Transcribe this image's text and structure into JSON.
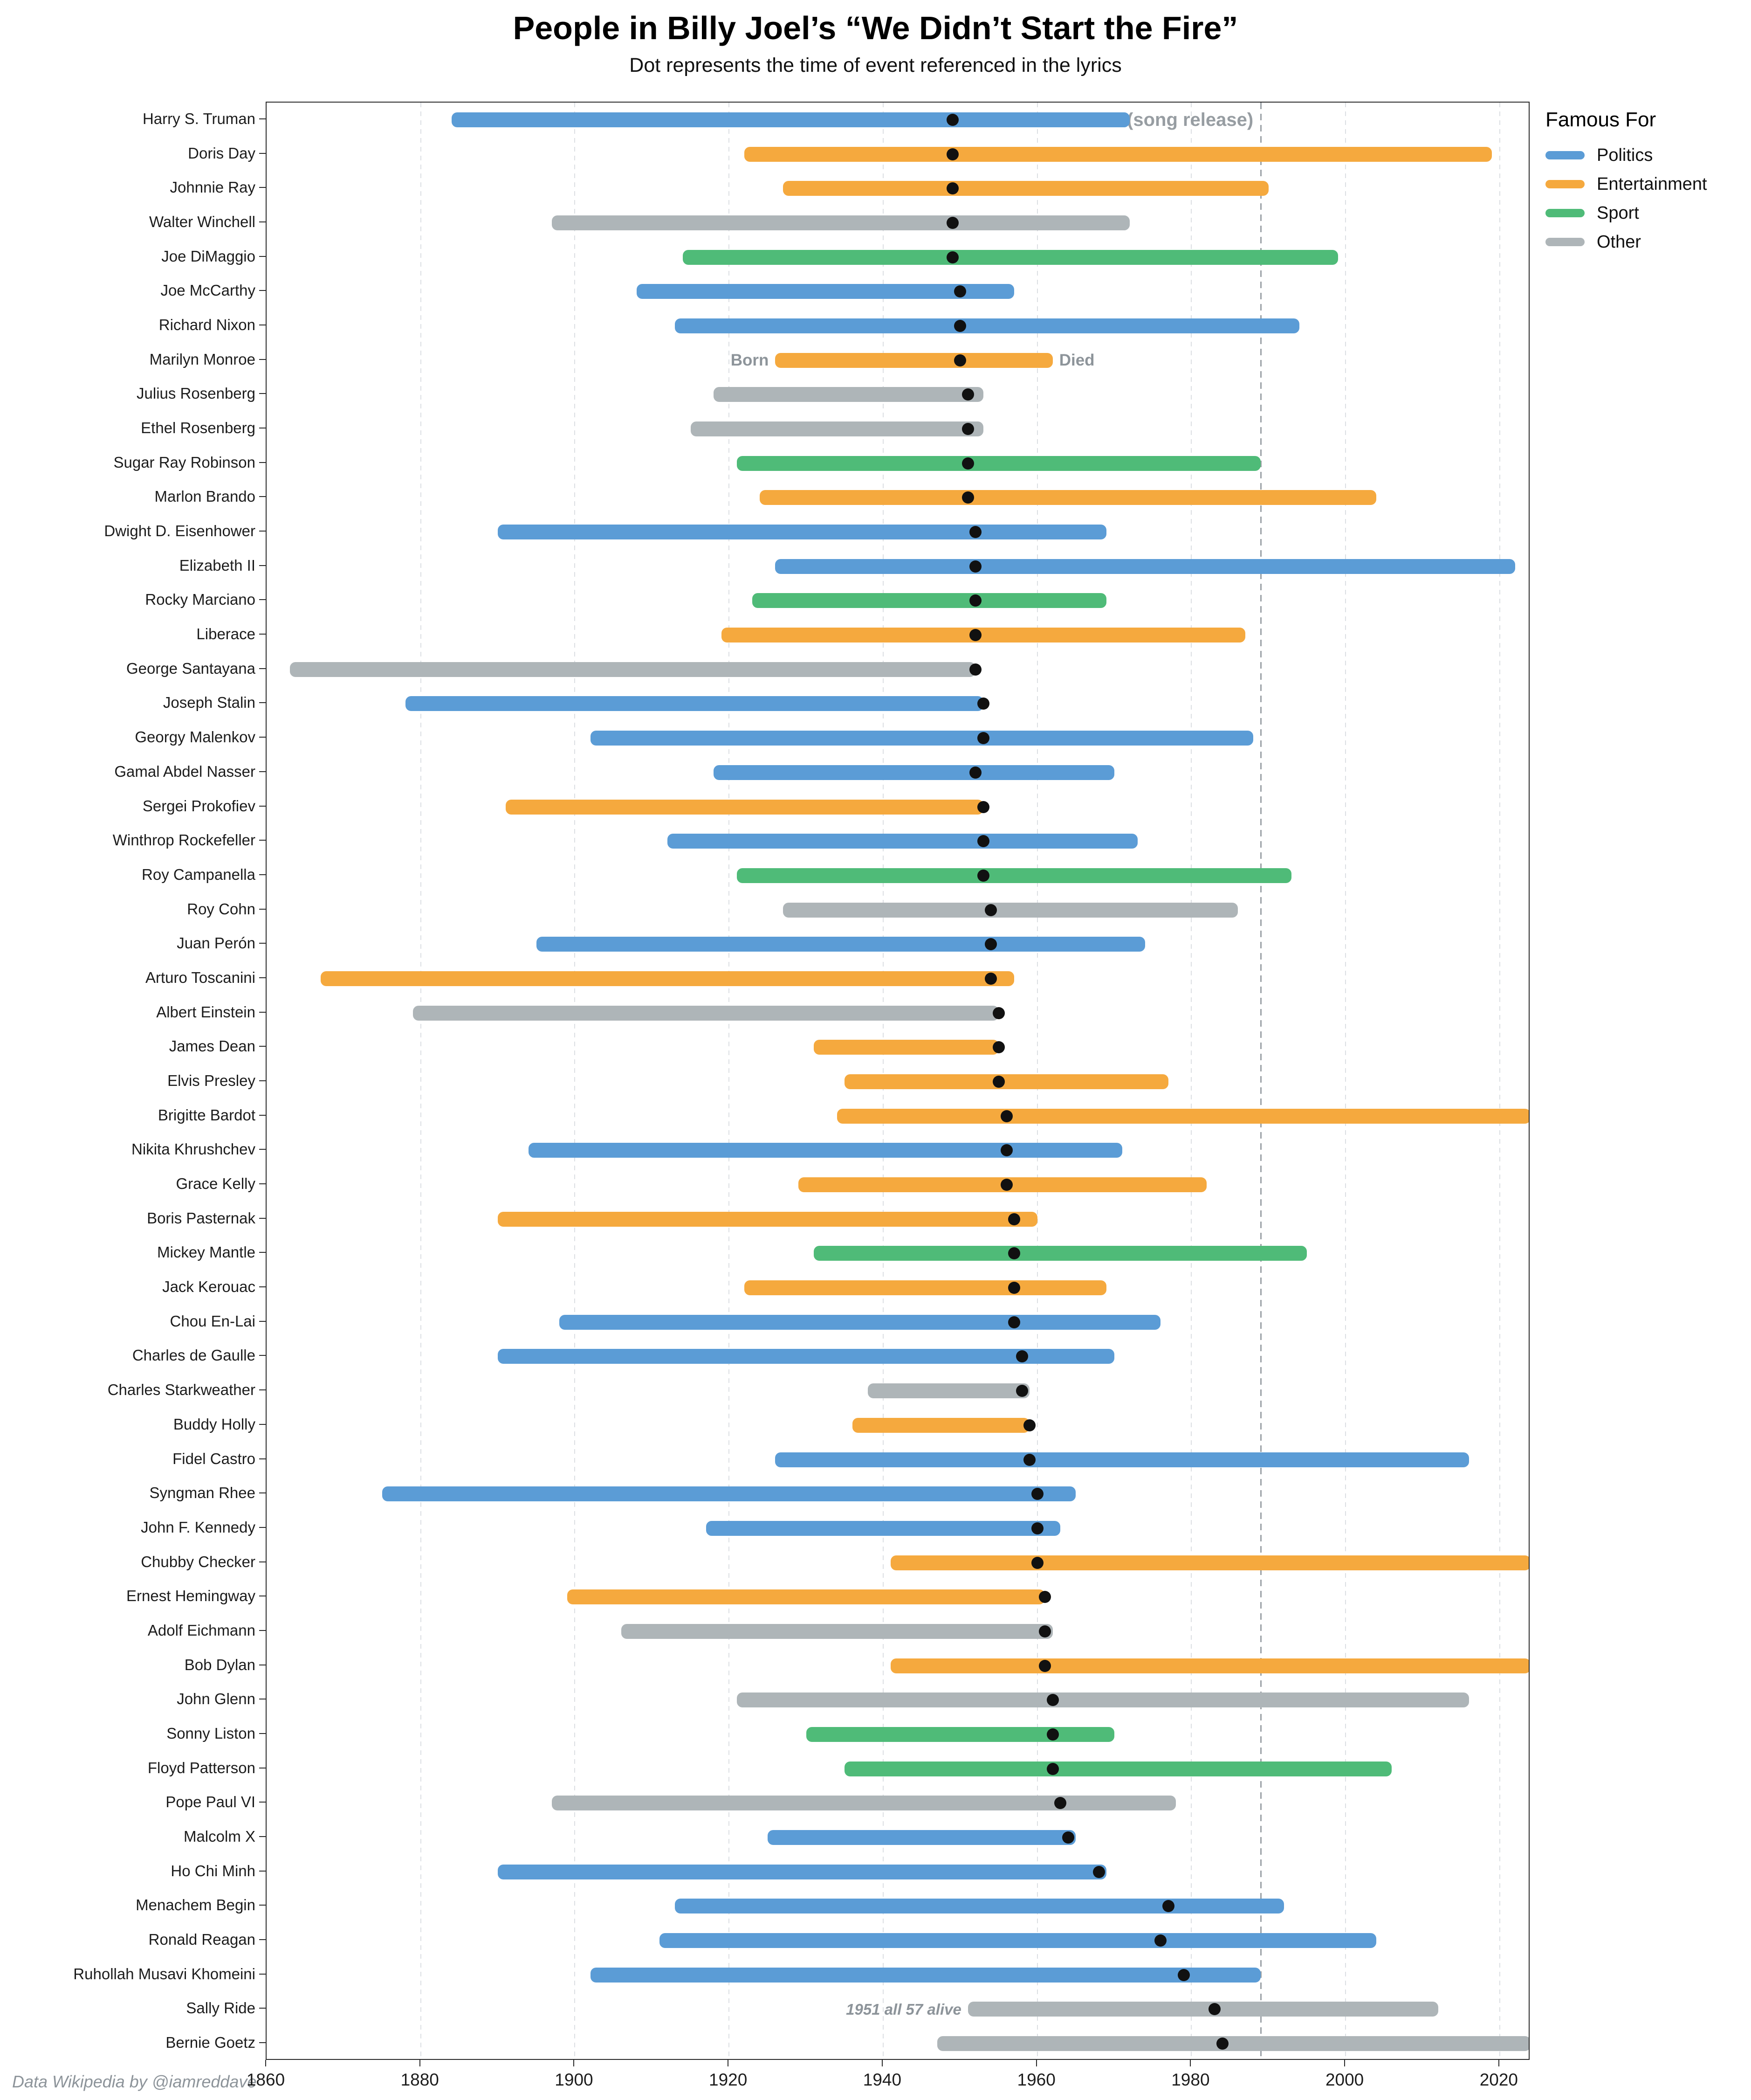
{
  "chart_data": {
    "type": "bar",
    "variant": "horizontal-lifespan-timeline",
    "title": "People in Billy Joel’s “We Didn’t Start the Fire”",
    "subtitle": "Dot represents the time of event referenced in the lyrics",
    "xlabel": "",
    "ylabel": "",
    "grid": "vertical-dashed",
    "x_axis": {
      "min": 1860,
      "max": 2024,
      "ticks": [
        1860,
        1880,
        1900,
        1920,
        1940,
        1960,
        1980,
        2000,
        2020
      ]
    },
    "colors": {
      "Politics": "#5B9CD6",
      "Entertainment": "#F5A93E",
      "Sport": "#4FBB78",
      "Other": "#AEB5B8",
      "dot": "#111111",
      "grid": "#DCDFE3",
      "release_line": "#9BA1A6",
      "annotation": "#8D949A"
    },
    "legend": {
      "title": "Famous For",
      "position": "top-right-outside",
      "entries": [
        {
          "label": "Politics",
          "color": "#5B9CD6"
        },
        {
          "label": "Entertainment",
          "color": "#F5A93E"
        },
        {
          "label": "Sport",
          "color": "#4FBB78"
        },
        {
          "label": "Other",
          "color": "#AEB5B8"
        }
      ]
    },
    "annotations": {
      "song_release": {
        "year": 1989,
        "label": "1989 (song release)"
      },
      "born_label": {
        "text": "Born",
        "year": 1926,
        "row_index": 7,
        "side": "left"
      },
      "died_label": {
        "text": "Died",
        "year": 1962,
        "row_index": 7,
        "side": "right"
      },
      "alive_note": {
        "text": "1951 all 57 alive",
        "year": 1951,
        "row_index": 55,
        "side": "left"
      },
      "credit": "Data Wikipedia by @iamreddave"
    },
    "people": [
      {
        "name": "Harry S. Truman",
        "famous_for": "Politics",
        "born": 1884,
        "died": 1972,
        "event": 1949
      },
      {
        "name": "Doris Day",
        "famous_for": "Entertainment",
        "born": 1922,
        "died": 2019,
        "event": 1949
      },
      {
        "name": "Johnnie Ray",
        "famous_for": "Entertainment",
        "born": 1927,
        "died": 1990,
        "event": 1949
      },
      {
        "name": "Walter Winchell",
        "famous_for": "Other",
        "born": 1897,
        "died": 1972,
        "event": 1949
      },
      {
        "name": "Joe DiMaggio",
        "famous_for": "Sport",
        "born": 1914,
        "died": 1999,
        "event": 1949
      },
      {
        "name": "Joe McCarthy",
        "famous_for": "Politics",
        "born": 1908,
        "died": 1957,
        "event": 1950
      },
      {
        "name": "Richard Nixon",
        "famous_for": "Politics",
        "born": 1913,
        "died": 1994,
        "event": 1950
      },
      {
        "name": "Marilyn Monroe",
        "famous_for": "Entertainment",
        "born": 1926,
        "died": 1962,
        "event": 1950
      },
      {
        "name": "Julius Rosenberg",
        "famous_for": "Other",
        "born": 1918,
        "died": 1953,
        "event": 1951
      },
      {
        "name": "Ethel Rosenberg",
        "famous_for": "Other",
        "born": 1915,
        "died": 1953,
        "event": 1951
      },
      {
        "name": "Sugar Ray Robinson",
        "famous_for": "Sport",
        "born": 1921,
        "died": 1989,
        "event": 1951
      },
      {
        "name": "Marlon Brando",
        "famous_for": "Entertainment",
        "born": 1924,
        "died": 2004,
        "event": 1951
      },
      {
        "name": "Dwight D. Eisenhower",
        "famous_for": "Politics",
        "born": 1890,
        "died": 1969,
        "event": 1952
      },
      {
        "name": "Elizabeth II",
        "famous_for": "Politics",
        "born": 1926,
        "died": 2022,
        "event": 1952
      },
      {
        "name": "Rocky Marciano",
        "famous_for": "Sport",
        "born": 1923,
        "died": 1969,
        "event": 1952
      },
      {
        "name": "Liberace",
        "famous_for": "Entertainment",
        "born": 1919,
        "died": 1987,
        "event": 1952
      },
      {
        "name": "George Santayana",
        "famous_for": "Other",
        "born": 1863,
        "died": 1952,
        "event": 1952
      },
      {
        "name": "Joseph Stalin",
        "famous_for": "Politics",
        "born": 1878,
        "died": 1953,
        "event": 1953
      },
      {
        "name": "Georgy Malenkov",
        "famous_for": "Politics",
        "born": 1902,
        "died": 1988,
        "event": 1953
      },
      {
        "name": "Gamal Abdel Nasser",
        "famous_for": "Politics",
        "born": 1918,
        "died": 1970,
        "event": 1952
      },
      {
        "name": "Sergei Prokofiev",
        "famous_for": "Entertainment",
        "born": 1891,
        "died": 1953,
        "event": 1953
      },
      {
        "name": "Winthrop Rockefeller",
        "famous_for": "Politics",
        "born": 1912,
        "died": 1973,
        "event": 1953
      },
      {
        "name": "Roy Campanella",
        "famous_for": "Sport",
        "born": 1921,
        "died": 1993,
        "event": 1953
      },
      {
        "name": "Roy Cohn",
        "famous_for": "Other",
        "born": 1927,
        "died": 1986,
        "event": 1954
      },
      {
        "name": "Juan Perón",
        "famous_for": "Politics",
        "born": 1895,
        "died": 1974,
        "event": 1954
      },
      {
        "name": "Arturo Toscanini",
        "famous_for": "Entertainment",
        "born": 1867,
        "died": 1957,
        "event": 1954
      },
      {
        "name": "Albert Einstein",
        "famous_for": "Other",
        "born": 1879,
        "died": 1955,
        "event": 1955
      },
      {
        "name": "James Dean",
        "famous_for": "Entertainment",
        "born": 1931,
        "died": 1955,
        "event": 1955
      },
      {
        "name": "Elvis Presley",
        "famous_for": "Entertainment",
        "born": 1935,
        "died": 1977,
        "event": 1955
      },
      {
        "name": "Brigitte Bardot",
        "famous_for": "Entertainment",
        "born": 1934,
        "died": null,
        "event": 1956
      },
      {
        "name": "Nikita Khrushchev",
        "famous_for": "Politics",
        "born": 1894,
        "died": 1971,
        "event": 1956
      },
      {
        "name": "Grace Kelly",
        "famous_for": "Entertainment",
        "born": 1929,
        "died": 1982,
        "event": 1956
      },
      {
        "name": "Boris Pasternak",
        "famous_for": "Entertainment",
        "born": 1890,
        "died": 1960,
        "event": 1957
      },
      {
        "name": "Mickey Mantle",
        "famous_for": "Sport",
        "born": 1931,
        "died": 1995,
        "event": 1957
      },
      {
        "name": "Jack Kerouac",
        "famous_for": "Entertainment",
        "born": 1922,
        "died": 1969,
        "event": 1957
      },
      {
        "name": "Chou En-Lai",
        "famous_for": "Politics",
        "born": 1898,
        "died": 1976,
        "event": 1957
      },
      {
        "name": "Charles de Gaulle",
        "famous_for": "Politics",
        "born": 1890,
        "died": 1970,
        "event": 1958
      },
      {
        "name": "Charles Starkweather",
        "famous_for": "Other",
        "born": 1938,
        "died": 1959,
        "event": 1958
      },
      {
        "name": "Buddy Holly",
        "famous_for": "Entertainment",
        "born": 1936,
        "died": 1959,
        "event": 1959
      },
      {
        "name": "Fidel Castro",
        "famous_for": "Politics",
        "born": 1926,
        "died": 2016,
        "event": 1959
      },
      {
        "name": "Syngman Rhee",
        "famous_for": "Politics",
        "born": 1875,
        "died": 1965,
        "event": 1960
      },
      {
        "name": "John F. Kennedy",
        "famous_for": "Politics",
        "born": 1917,
        "died": 1963,
        "event": 1960
      },
      {
        "name": "Chubby Checker",
        "famous_for": "Entertainment",
        "born": 1941,
        "died": null,
        "event": 1960
      },
      {
        "name": "Ernest Hemingway",
        "famous_for": "Entertainment",
        "born": 1899,
        "died": 1961,
        "event": 1961
      },
      {
        "name": "Adolf Eichmann",
        "famous_for": "Other",
        "born": 1906,
        "died": 1962,
        "event": 1961
      },
      {
        "name": "Bob Dylan",
        "famous_for": "Entertainment",
        "born": 1941,
        "died": null,
        "event": 1961
      },
      {
        "name": "John Glenn",
        "famous_for": "Other",
        "born": 1921,
        "died": 2016,
        "event": 1962
      },
      {
        "name": "Sonny Liston",
        "famous_for": "Sport",
        "born": 1930,
        "died": 1970,
        "event": 1962
      },
      {
        "name": "Floyd Patterson",
        "famous_for": "Sport",
        "born": 1935,
        "died": 2006,
        "event": 1962
      },
      {
        "name": "Pope Paul VI",
        "famous_for": "Other",
        "born": 1897,
        "died": 1978,
        "event": 1963
      },
      {
        "name": "Malcolm X",
        "famous_for": "Politics",
        "born": 1925,
        "died": 1965,
        "event": 1964
      },
      {
        "name": "Ho Chi Minh",
        "famous_for": "Politics",
        "born": 1890,
        "died": 1969,
        "event": 1968
      },
      {
        "name": "Menachem Begin",
        "famous_for": "Politics",
        "born": 1913,
        "died": 1992,
        "event": 1977
      },
      {
        "name": "Ronald Reagan",
        "famous_for": "Politics",
        "born": 1911,
        "died": 2004,
        "event": 1976
      },
      {
        "name": "Ruhollah Musavi Khomeini",
        "famous_for": "Politics",
        "born": 1902,
        "died": 1989,
        "event": 1979
      },
      {
        "name": "Sally Ride",
        "famous_for": "Other",
        "born": 1951,
        "died": 2012,
        "event": 1983
      },
      {
        "name": "Bernie Goetz",
        "famous_for": "Other",
        "born": 1947,
        "died": null,
        "event": 1984
      }
    ]
  }
}
